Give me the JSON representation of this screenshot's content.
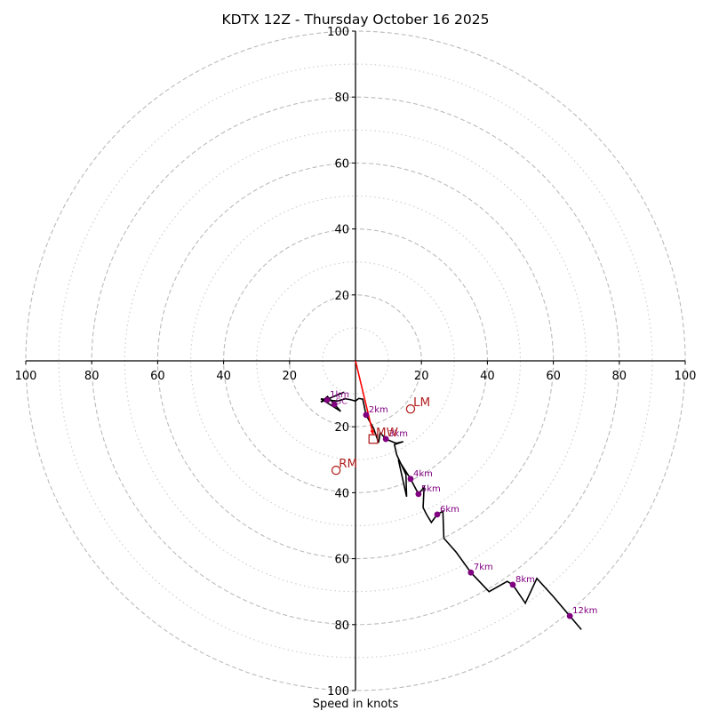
{
  "chart_data": {
    "type": "line",
    "subtype": "hodograph",
    "title": "KDTX 12Z - Thursday October 16 2025",
    "xlabel": "Speed in knots",
    "ylabel": "",
    "range_kts": 100,
    "ring_major_kts": [
      20,
      40,
      60,
      80,
      100
    ],
    "ring_minor_kts": [
      10,
      30,
      50,
      70,
      90
    ],
    "tick_labels": {
      "x_left": [
        "100",
        "80",
        "60",
        "40",
        "20"
      ],
      "x_right": [
        "20",
        "40",
        "60",
        "80",
        "100"
      ],
      "y_top": [
        "100",
        "80",
        "60",
        "40",
        "20"
      ],
      "y_bottom": [
        "20",
        "40",
        "60",
        "80",
        "100"
      ]
    },
    "grid": true,
    "colors": {
      "trace": "#000000",
      "markers": "#800080",
      "storm_motion": "#b22222",
      "shear_vector": "#ff0000",
      "grid": "#bbbbbb"
    },
    "trace": [
      [
        -3.5,
        -9.5
      ],
      [
        -10.5,
        -12.5
      ],
      [
        -8.5,
        -10.8
      ],
      [
        -4.5,
        -15.3
      ],
      [
        -10.5,
        -11.5
      ],
      [
        -9.0,
        -11.8
      ],
      [
        -5.5,
        -12.2
      ],
      [
        -3.0,
        -11.5
      ],
      [
        -1.5,
        -11.8
      ],
      [
        0.0,
        -12.2
      ],
      [
        1.0,
        -11.4
      ],
      [
        2.2,
        -11.6
      ],
      [
        3.2,
        -16.4
      ],
      [
        5.5,
        -20.5
      ],
      [
        7.0,
        -24.8
      ],
      [
        7.5,
        -21.8
      ],
      [
        9.2,
        -23.7
      ],
      [
        12.3,
        -25.0
      ],
      [
        14.5,
        -24.5
      ],
      [
        11.8,
        -25.4
      ],
      [
        12.5,
        -28.5
      ],
      [
        15.3,
        -34.5
      ],
      [
        15.5,
        -41.2
      ],
      [
        13.0,
        -30.0
      ],
      [
        16.7,
        -35.8
      ],
      [
        19.1,
        -40.4
      ],
      [
        20.8,
        -38.3
      ],
      [
        20.5,
        -44.5
      ],
      [
        21.5,
        -46.5
      ],
      [
        23.0,
        -49.0
      ],
      [
        24.8,
        -46.6
      ],
      [
        26.5,
        -45.6
      ],
      [
        26.8,
        -53.8
      ],
      [
        30.5,
        -58.0
      ],
      [
        35.0,
        -64.2
      ],
      [
        40.5,
        -70.0
      ],
      [
        46.0,
        -66.9
      ],
      [
        47.7,
        -67.9
      ],
      [
        51.5,
        -73.5
      ],
      [
        55.0,
        -66.0
      ],
      [
        60.0,
        -71.5
      ],
      [
        65.0,
        -77.4
      ],
      [
        68.5,
        -81.5
      ]
    ],
    "height_markers": [
      {
        "label": "1km",
        "u": -8.6,
        "v": -11.9
      },
      {
        "label": "",
        "u": -6.4,
        "v": -13.2
      },
      {
        "label": "2km",
        "u": 3.2,
        "v": -16.4
      },
      {
        "label": "3km",
        "u": 9.2,
        "v": -23.7
      },
      {
        "label": "4km",
        "u": 16.7,
        "v": -35.8
      },
      {
        "label": "5km",
        "u": 19.1,
        "v": -40.4
      },
      {
        "label": "6km",
        "u": 24.8,
        "v": -46.6
      },
      {
        "label": "7km",
        "u": 35.0,
        "v": -64.2
      },
      {
        "label": "8km",
        "u": 47.7,
        "v": -67.9
      },
      {
        "label": "12km",
        "u": 65.0,
        "v": -77.4
      }
    ],
    "storm_motion": [
      {
        "label": "LM",
        "marker": "circle",
        "u": 16.7,
        "v": -14.6
      },
      {
        "label": "RM",
        "marker": "circle",
        "u": -5.9,
        "v": -33.2
      },
      {
        "label": "MW",
        "marker": "square",
        "u": 5.4,
        "v": -23.7
      }
    ],
    "shear_vector": {
      "from": [
        0,
        0
      ],
      "to": [
        5.4,
        -22.5
      ]
    },
    "overlap_label": "SC",
    "legend": "none"
  }
}
